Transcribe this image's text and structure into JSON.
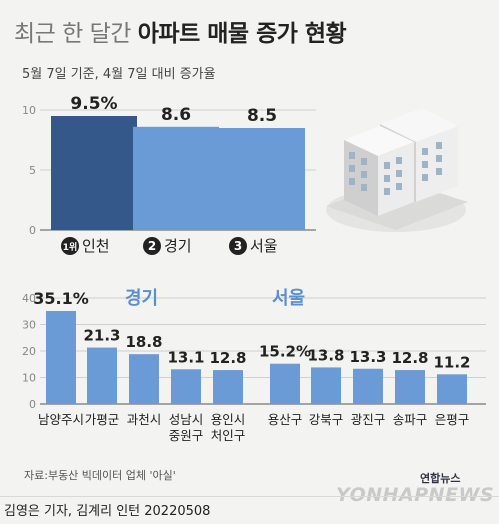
{
  "title_light": "최근 한 달간",
  "title_bold": "아파트 매물 증가 현황",
  "subtitle": "5월 7일 기준, 4월 7일 대비 증가율",
  "source": "자료:부동산 빅데이터 업체 '아실'",
  "byline": "김영은 기자, 김계리 인턴  20220508",
  "logo": "연합뉴스",
  "watermark": "YONHAPNEWS",
  "rank_badge_1": "1위",
  "chart_data": [
    {
      "type": "bar",
      "categories": [
        "인천",
        "경기",
        "서울"
      ],
      "rank_labels": [
        "1위",
        "2",
        "3"
      ],
      "values": [
        9.5,
        8.6,
        8.5
      ],
      "value_labels": [
        "9.5%",
        "8.6",
        "8.5"
      ],
      "ylim": [
        0,
        10
      ],
      "yticks": [
        "0",
        "5",
        "10"
      ],
      "colors": [
        "#34588a",
        "#6b9bd6",
        "#6b9bd6"
      ]
    },
    {
      "type": "bar",
      "group_label": "경기",
      "categories": [
        "남양주시",
        "가평군",
        "과천시",
        "성남시 중원구",
        "용인시 처인구"
      ],
      "category_lines": [
        [
          "남양주시"
        ],
        [
          "가평군"
        ],
        [
          "과천시"
        ],
        [
          "성남시",
          "중원구"
        ],
        [
          "용인시",
          "처인구"
        ]
      ],
      "values": [
        35.1,
        21.3,
        18.8,
        13.1,
        12.8
      ],
      "value_labels": [
        "35.1%",
        "21.3",
        "18.8",
        "13.1",
        "12.8"
      ],
      "ylim": [
        0,
        40
      ],
      "yticks": [
        "0",
        "10",
        "20",
        "30",
        "40"
      ],
      "color": "#6b9bd6"
    },
    {
      "type": "bar",
      "group_label": "서울",
      "categories": [
        "용산구",
        "강북구",
        "광진구",
        "송파구",
        "은평구"
      ],
      "values": [
        15.2,
        13.8,
        13.3,
        12.8,
        11.2
      ],
      "value_labels": [
        "15.2%",
        "13.8",
        "13.3",
        "12.8",
        "11.2"
      ],
      "ylim": [
        0,
        40
      ],
      "color": "#6b9bd6"
    }
  ]
}
